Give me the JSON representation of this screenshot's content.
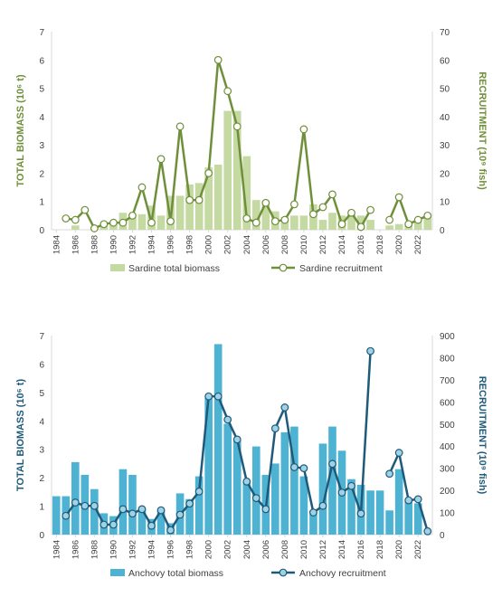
{
  "chart_data": [
    {
      "type": "bar",
      "x_start": 1984,
      "x_end": 2023,
      "x_tick_labels": [
        "1984",
        "1986",
        "1988",
        "1990",
        "1992",
        "1994",
        "1996",
        "1998",
        "2000",
        "2002",
        "2004",
        "2006",
        "2008",
        "2010",
        "2012",
        "2014",
        "2016",
        "2018",
        "2020",
        "2022"
      ],
      "ylabel_left": "TOTAL BIOMASS (10⁶ t)",
      "ylabel_right": "RECRUITMENT (10⁹ fish)",
      "ylim_left": [
        0,
        7
      ],
      "ylim_right": [
        0,
        70
      ],
      "y_ticks_left": [
        "0",
        "1",
        "2",
        "3",
        "4",
        "5",
        "6",
        "7"
      ],
      "y_ticks_right": [
        "0",
        "10",
        "20",
        "30",
        "40",
        "50",
        "60",
        "70"
      ],
      "bar_color": "#c5d9a2",
      "line_color": "#6f8f3a",
      "legend_position": "bottom",
      "series": [
        {
          "name": "Sardine total biomass",
          "kind": "bar",
          "values": [
            null,
            null,
            0.15,
            null,
            0.1,
            0.15,
            0.2,
            0.6,
            0.55,
            0.55,
            0.85,
            0.5,
            1.2,
            1.2,
            1.6,
            1.65,
            2.2,
            2.3,
            4.2,
            4.2,
            2.6,
            1.05,
            1.0,
            0.65,
            0.45,
            0.5,
            0.5,
            0.9,
            0.35,
            0.6,
            0.5,
            0.55,
            0.5,
            0.35,
            null,
            0.15,
            0.2,
            0.2,
            0.35,
            0.5
          ]
        },
        {
          "name": "Sardine recruitment",
          "kind": "line",
          "values": [
            null,
            4,
            3.5,
            7,
            0.5,
            2,
            2.5,
            2.5,
            5,
            15,
            2.5,
            25,
            3,
            36.5,
            10.5,
            10.5,
            20,
            60,
            49,
            36.5,
            4,
            2.5,
            9.5,
            3,
            3.5,
            9,
            35.5,
            5.5,
            8,
            12.5,
            2,
            6,
            1,
            7,
            null,
            3.5,
            11.5,
            2,
            3.5,
            5
          ]
        }
      ]
    },
    {
      "type": "bar",
      "x_start": 1984,
      "x_end": 2023,
      "x_tick_labels": [
        "1984",
        "1986",
        "1988",
        "1990",
        "1992",
        "1994",
        "1996",
        "1998",
        "2000",
        "2002",
        "2004",
        "2006",
        "2008",
        "2010",
        "2012",
        "2014",
        "2016",
        "2018",
        "2020",
        "2022"
      ],
      "ylabel_left": "TOTAL BIOMASS (10⁶ t)",
      "ylabel_right": "RECRUITMENT (10⁹ fish)",
      "ylim_left": [
        0,
        7
      ],
      "ylim_right": [
        0,
        900
      ],
      "y_ticks_left": [
        "0",
        "1",
        "2",
        "3",
        "4",
        "5",
        "6",
        "7"
      ],
      "y_ticks_right": [
        "0",
        "100",
        "200",
        "300",
        "400",
        "500",
        "600",
        "700",
        "800",
        "900"
      ],
      "bar_color": "#4eb3d3",
      "line_color": "#1f5a7a",
      "marker_fill": "#9fd2e4",
      "legend_position": "bottom",
      "series": [
        {
          "name": "Anchovy total biomass",
          "kind": "bar",
          "values": [
            1.35,
            1.35,
            2.55,
            2.1,
            1.6,
            0.75,
            0.65,
            2.3,
            2.1,
            0.9,
            0.55,
            0.85,
            0.4,
            1.45,
            1.25,
            2.05,
            4.8,
            6.7,
            3.9,
            3.3,
            1.85,
            3.1,
            2.1,
            2.5,
            3.6,
            3.8,
            2.05,
            0.85,
            3.2,
            3.8,
            2.95,
            1.95,
            1.75,
            1.55,
            1.55,
            0.85,
            2.3,
            1.2,
            1.1,
            null
          ]
        },
        {
          "name": "Anchovy recruitment",
          "kind": "line",
          "values": [
            null,
            85,
            145,
            130,
            130,
            45,
            45,
            115,
            95,
            115,
            40,
            110,
            20,
            90,
            140,
            195,
            625,
            625,
            520,
            430,
            240,
            165,
            115,
            480,
            575,
            305,
            300,
            100,
            130,
            320,
            190,
            220,
            95,
            830,
            null,
            275,
            370,
            155,
            160,
            15
          ]
        }
      ]
    }
  ]
}
